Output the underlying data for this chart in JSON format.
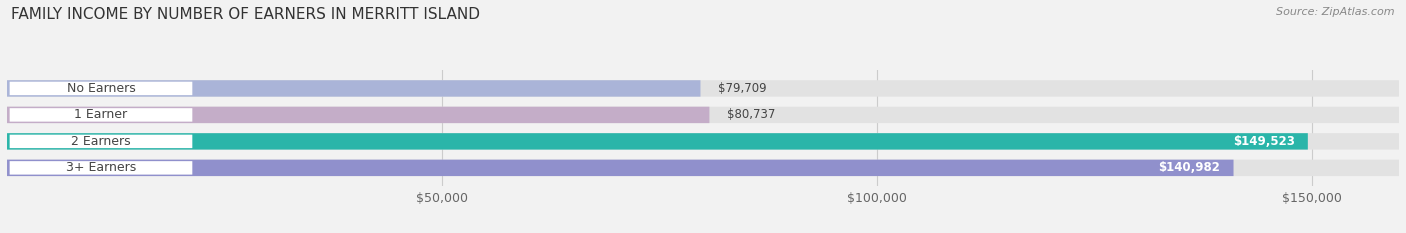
{
  "title": "FAMILY INCOME BY NUMBER OF EARNERS IN MERRITT ISLAND",
  "source": "Source: ZipAtlas.com",
  "categories": [
    "No Earners",
    "1 Earner",
    "2 Earners",
    "3+ Earners"
  ],
  "values": [
    79709,
    80737,
    149523,
    140982
  ],
  "bar_colors": [
    "#aab4d8",
    "#c4adc8",
    "#2ab5a9",
    "#9090cc"
  ],
  "label_colors": [
    "#555555",
    "#555555",
    "#ffffff",
    "#ffffff"
  ],
  "value_labels": [
    "$79,709",
    "$80,737",
    "$149,523",
    "$140,982"
  ],
  "xlim": [
    0,
    160000
  ],
  "xticks": [
    50000,
    100000,
    150000
  ],
  "xticklabels": [
    "$50,000",
    "$100,000",
    "$150,000"
  ],
  "background_color": "#f2f2f2",
  "bar_bg_color": "#e2e2e2",
  "bar_height": 0.62,
  "title_fontsize": 11,
  "source_fontsize": 8,
  "label_fontsize": 9,
  "value_fontsize": 8.5,
  "tick_fontsize": 9
}
